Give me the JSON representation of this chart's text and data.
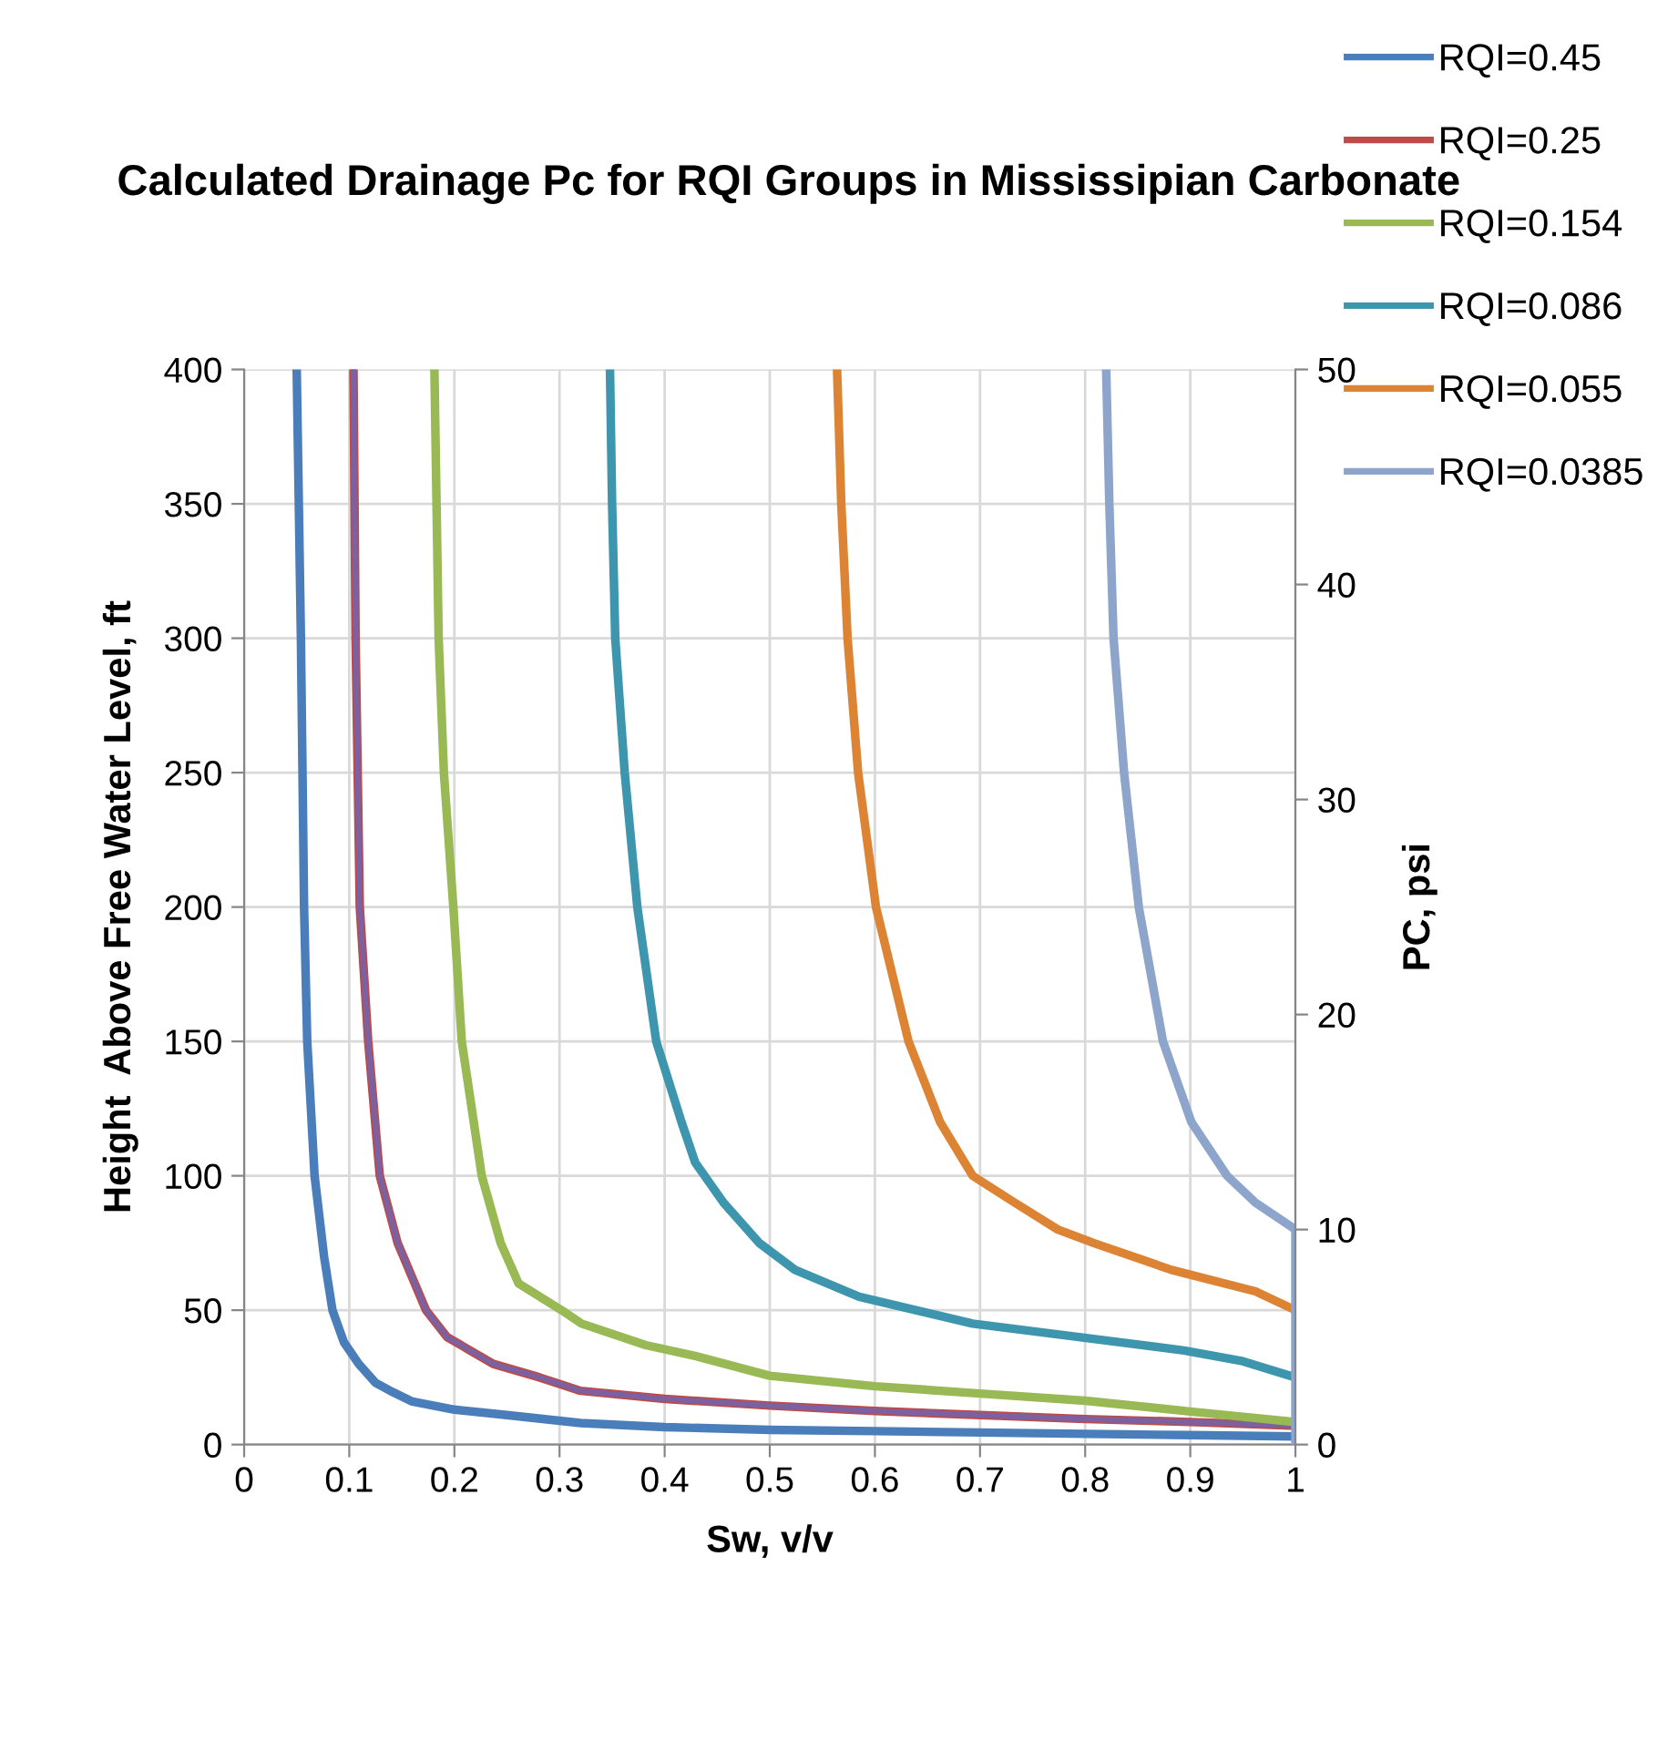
{
  "chart_data": {
    "type": "line",
    "title": "Calculated Drainage Pc for RQI Groups in Mississipian Carbonate",
    "xlabel": "Sw, v/v",
    "ylabel": "Height  Above Free Water Level, ft",
    "y2label": "PC, psi",
    "xlim": [
      0,
      1
    ],
    "xticks": [
      0,
      0.1,
      0.2,
      0.3,
      0.4,
      0.5,
      0.6,
      0.7,
      0.8,
      0.9,
      1
    ],
    "ylim": [
      0,
      400
    ],
    "yticks": [
      0,
      50,
      100,
      150,
      200,
      250,
      300,
      350,
      400
    ],
    "y2lim": [
      0,
      50
    ],
    "y2ticks": [
      0,
      10,
      20,
      30,
      40,
      50
    ],
    "grid": true,
    "legend": "top right",
    "marker": "none",
    "line_style": "solid",
    "series": [
      {
        "name": "RQI=0.45",
        "color": "#4a7ebb",
        "x": [
          0.05,
          0.052,
          0.054,
          0.057,
          0.06,
          0.067,
          0.076,
          0.084,
          0.095,
          0.109,
          0.125,
          0.139,
          0.16,
          0.2,
          0.25,
          0.32,
          0.4,
          0.5,
          0.6,
          0.7,
          0.8,
          0.9,
          1.0
        ],
        "values": [
          400,
          350,
          300,
          200,
          150,
          100,
          70,
          50,
          38,
          30,
          23,
          20,
          16,
          13,
          11,
          8,
          6.5,
          5.5,
          5,
          4.5,
          4,
          3.5,
          3
        ]
      },
      {
        "name": "RQI=0.25",
        "color": "#be4b48",
        "x": [
          0.104,
          0.105,
          0.106,
          0.108,
          0.11,
          0.118,
          0.129,
          0.146,
          0.173,
          0.193,
          0.237,
          0.281,
          0.32,
          0.4,
          0.5,
          0.6,
          0.7,
          0.8,
          0.9,
          1.0
        ],
        "values": [
          400,
          350,
          300,
          250,
          200,
          150,
          100,
          75,
          50,
          40,
          30,
          25,
          20,
          17,
          14.5,
          12.5,
          11,
          9.5,
          8.4,
          7
        ]
      },
      {
        "color": "#7d60a0",
        "x": [
          0.104,
          0.105,
          0.106,
          0.108,
          0.11,
          0.118,
          0.129,
          0.146,
          0.173,
          0.193,
          0.237,
          0.281,
          0.32,
          0.4,
          0.5,
          0.6,
          0.7,
          0.8,
          0.9,
          1.0
        ],
        "values": [
          400,
          350,
          300,
          250,
          200,
          150,
          100,
          75,
          50,
          40,
          30,
          25,
          20,
          17,
          14.5,
          12.5,
          11,
          9.5,
          8.4,
          7
        ]
      },
      {
        "name": "RQI=0.154",
        "color": "#98b954",
        "x": [
          0.181,
          0.183,
          0.185,
          0.19,
          0.199,
          0.207,
          0.226,
          0.244,
          0.261,
          0.302,
          0.321,
          0.382,
          0.429,
          0.5,
          0.6,
          0.7,
          0.8,
          0.9,
          1.0
        ],
        "values": [
          400,
          350,
          300,
          250,
          200,
          150,
          100,
          75,
          60,
          50,
          45,
          37,
          33,
          25.6,
          21.7,
          19,
          16.3,
          12.3,
          8.4
        ]
      },
      {
        "name": "RQI=0.086",
        "color": "#3d96ae",
        "x": [
          0.348,
          0.35,
          0.353,
          0.362,
          0.374,
          0.392,
          0.416,
          0.429,
          0.456,
          0.49,
          0.524,
          0.585,
          0.693,
          0.794,
          0.894,
          0.95,
          1.0
        ],
        "values": [
          400,
          350,
          300,
          250,
          200,
          150,
          120,
          105,
          90,
          75,
          65,
          55,
          45,
          40,
          35,
          31,
          25
        ]
      },
      {
        "name": "RQI=0.055",
        "color": "#dd8434",
        "x": [
          0.564,
          0.568,
          0.574,
          0.584,
          0.601,
          0.632,
          0.662,
          0.693,
          0.733,
          0.774,
          0.808,
          0.882,
          0.962,
          1.0
        ],
        "values": [
          400,
          350,
          300,
          250,
          200,
          150,
          120,
          100,
          90,
          80,
          75,
          65,
          57,
          50
        ]
      },
      {
        "name": "RQI=0.0385",
        "color": "#8ea5cb",
        "x": [
          0.82,
          0.823,
          0.827,
          0.837,
          0.851,
          0.874,
          0.901,
          0.935,
          0.962,
          1.0,
          1.0
        ],
        "values": [
          400,
          350,
          300,
          250,
          200,
          150,
          120,
          100,
          90,
          80,
          0
        ]
      }
    ]
  }
}
